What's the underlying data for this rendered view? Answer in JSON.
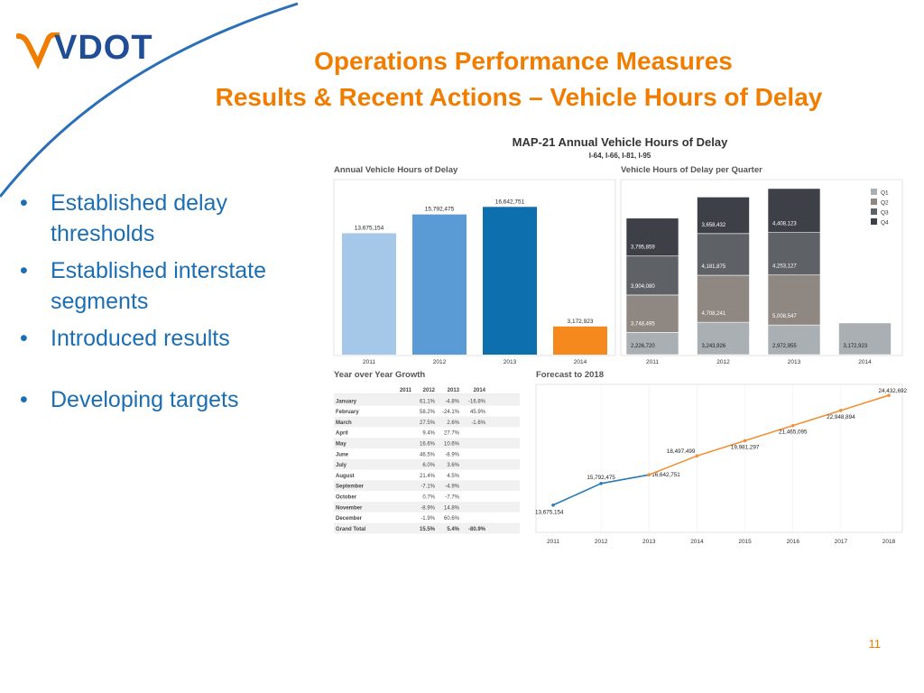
{
  "logo": {
    "text": "VDOT",
    "colors": {
      "blue": "#1f4e96",
      "orange": "#f07d00"
    }
  },
  "slide": {
    "title_line1": "Operations Performance Measures",
    "title_line2": "Results & Recent Actions – Vehicle Hours of Delay",
    "bullets": [
      "Established delay thresholds",
      "Established interstate segments",
      "Introduced results",
      "Developing targets"
    ],
    "page_number": "11"
  },
  "dashboard": {
    "title": "MAP-21 Annual Vehicle Hours of Delay",
    "subtitle": "I-64, I-66, I-81, I-95"
  },
  "chart_data": [
    {
      "type": "bar",
      "title": "Annual Vehicle Hours of Delay",
      "categories": [
        "2011",
        "2012",
        "2013",
        "2014"
      ],
      "values": [
        13675154,
        15792475,
        16642751,
        3172923
      ],
      "labels": [
        "13,675,154",
        "15,792,475",
        "16,642,751",
        "3,172,923"
      ],
      "colors": [
        "#a5c8e8",
        "#5b9bd5",
        "#0e6fae",
        "#f5891d"
      ],
      "ylim": [
        0,
        18500000
      ],
      "grid": false
    },
    {
      "type": "bar",
      "stacked": true,
      "title": "Vehicle Hours of Delay per Quarter",
      "categories": [
        "2011",
        "2012",
        "2013",
        "2014"
      ],
      "series": [
        {
          "name": "Q1",
          "color": "#a9afb3",
          "values": [
            2226720,
            3243926,
            2972955,
            3172923
          ],
          "labels": [
            "2,226,720",
            "3,243,926",
            "2,972,955",
            "3,172,923"
          ]
        },
        {
          "name": "Q2",
          "color": "#8e8782",
          "values": [
            3748495,
            4708241,
            5008547,
            null
          ],
          "labels": [
            "3,748,495",
            "4,708,241",
            "5,008,547",
            ""
          ]
        },
        {
          "name": "Q3",
          "color": "#5e6166",
          "values": [
            3904080,
            4181875,
            4253127,
            null
          ],
          "labels": [
            "3,904,080",
            "4,181,875",
            "4,253,127",
            ""
          ]
        },
        {
          "name": "Q4",
          "color": "#3d4046",
          "values": [
            3795859,
            3658432,
            4408123,
            null
          ],
          "labels": [
            "3,795,859",
            "3,658,432",
            "4,408,123",
            ""
          ]
        }
      ],
      "ylim": [
        0,
        17000000
      ],
      "legend": "top-right"
    },
    {
      "type": "table",
      "title": "Year over Year Growth",
      "columns": [
        "",
        "2011",
        "2012",
        "2013",
        "2014"
      ],
      "rows": [
        [
          "January",
          "",
          "61.1%",
          "-4.8%",
          "-16.8%"
        ],
        [
          "February",
          "",
          "58.2%",
          "-24.1%",
          "45.9%"
        ],
        [
          "March",
          "",
          "27.5%",
          "2.6%",
          "-1.6%"
        ],
        [
          "April",
          "",
          "9.4%",
          "27.7%",
          ""
        ],
        [
          "May",
          "",
          "16.6%",
          "10.6%",
          ""
        ],
        [
          "June",
          "",
          "46.5%",
          "-8.9%",
          ""
        ],
        [
          "July",
          "",
          "6.0%",
          "3.6%",
          ""
        ],
        [
          "August",
          "",
          "21.4%",
          "4.5%",
          ""
        ],
        [
          "September",
          "",
          "-7.1%",
          "-4.9%",
          ""
        ],
        [
          "October",
          "",
          "0.7%",
          "-7.7%",
          ""
        ],
        [
          "November",
          "",
          "-8.9%",
          "14.8%",
          ""
        ],
        [
          "December",
          "",
          "-1.9%",
          "60.6%",
          ""
        ],
        [
          "Grand Total",
          "",
          "15.5%",
          "5.4%",
          "-80.9%"
        ]
      ]
    },
    {
      "type": "line",
      "title": "Forecast to 2018",
      "x": [
        "2011",
        "2012",
        "2013",
        "2014",
        "2015",
        "2016",
        "2017",
        "2018"
      ],
      "series": [
        {
          "color": "#2a7ab8",
          "values": [
            13675154,
            15792475,
            16642751,
            null,
            null,
            null,
            null,
            null
          ],
          "labels": [
            "13,675,154",
            "15,792,475",
            "16,642,751",
            "",
            "",
            "",
            "",
            ""
          ]
        },
        {
          "color": "#f0923a",
          "values": [
            null,
            null,
            16642751,
            18497499,
            19981297,
            21465095,
            22948894,
            24432692
          ],
          "labels": [
            "",
            "",
            "",
            "18,497,499",
            "19,981,297",
            "21,465,095",
            "22,948,894",
            "24,432,692"
          ]
        }
      ],
      "ylim": [
        11000000,
        25500000
      ]
    }
  ]
}
